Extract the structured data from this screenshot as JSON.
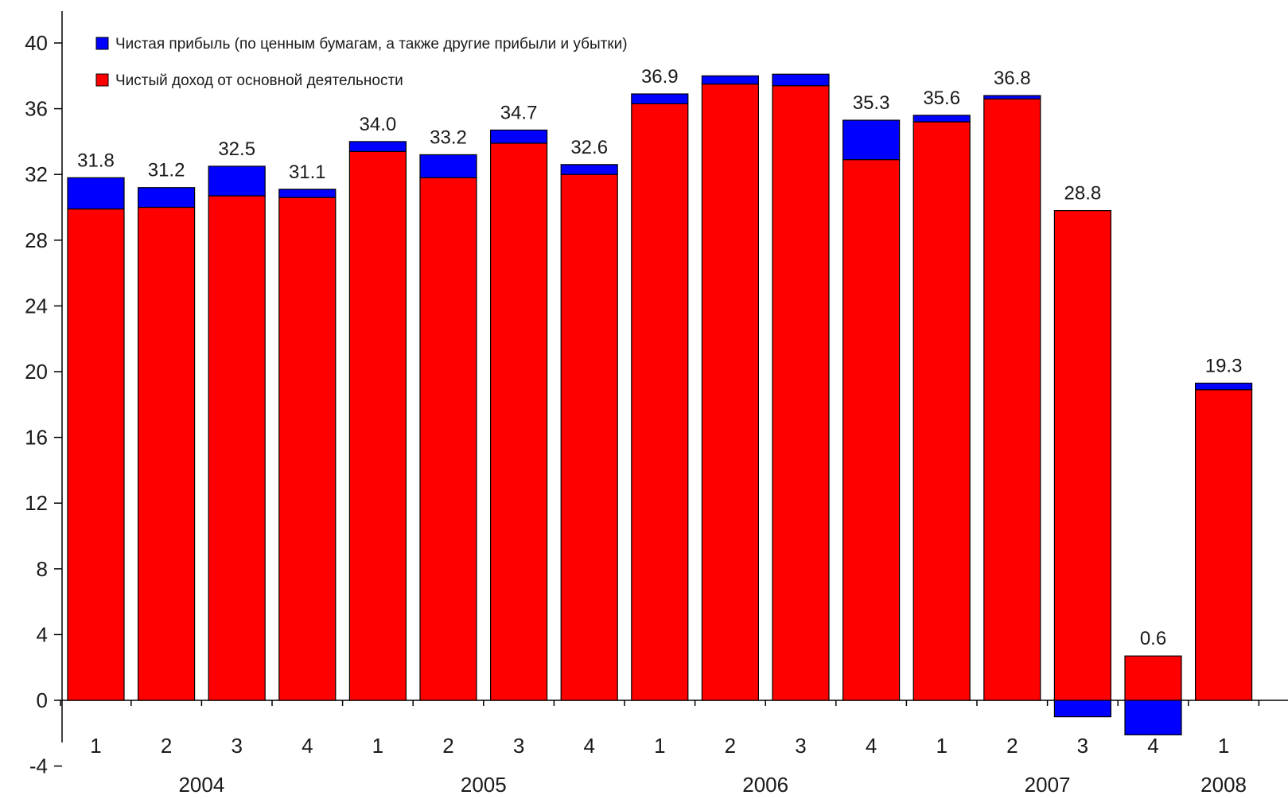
{
  "chart_data": {
    "type": "bar",
    "stacked": true,
    "categories": [
      "1",
      "2",
      "3",
      "4",
      "1",
      "2",
      "3",
      "4",
      "1",
      "2",
      "3",
      "4",
      "1",
      "2",
      "3",
      "4",
      "1"
    ],
    "years": [
      {
        "label": "2004",
        "quarters": 4
      },
      {
        "label": "2005",
        "quarters": 4
      },
      {
        "label": "2006",
        "quarters": 4
      },
      {
        "label": "2007",
        "quarters": 4
      },
      {
        "label": "2008",
        "quarters": 1
      }
    ],
    "series": [
      {
        "name": "Чистый доход от основной деятельности",
        "color": "#ff0000",
        "values": [
          29.9,
          30.0,
          30.7,
          30.6,
          33.4,
          31.8,
          33.9,
          32.0,
          36.3,
          37.5,
          37.4,
          32.9,
          35.2,
          36.6,
          29.8,
          2.7,
          18.9
        ]
      },
      {
        "name": "Чистая прибыль (по ценным бумагам, а также другие прибыли и убытки)",
        "color": "#0000ff",
        "values": [
          1.9,
          1.2,
          1.8,
          0.5,
          0.6,
          1.4,
          0.8,
          0.6,
          0.6,
          0.5,
          0.7,
          2.4,
          0.4,
          0.2,
          -1.0,
          -2.1,
          0.4
        ]
      }
    ],
    "totals_labels": [
      "31.8",
      "31.2",
      "32.5",
      "31.1",
      "34.0",
      "33.2",
      "34.7",
      "32.6",
      "36.9",
      "",
      "",
      "35.3",
      "35.6",
      "36.8",
      "28.8",
      "0.6",
      "19.3"
    ],
    "ylim": [
      -4,
      40
    ],
    "yticks": [
      -4,
      0,
      4,
      8,
      12,
      16,
      20,
      24,
      28,
      32,
      36,
      40
    ],
    "legend_position": "top-left",
    "grid": false
  }
}
